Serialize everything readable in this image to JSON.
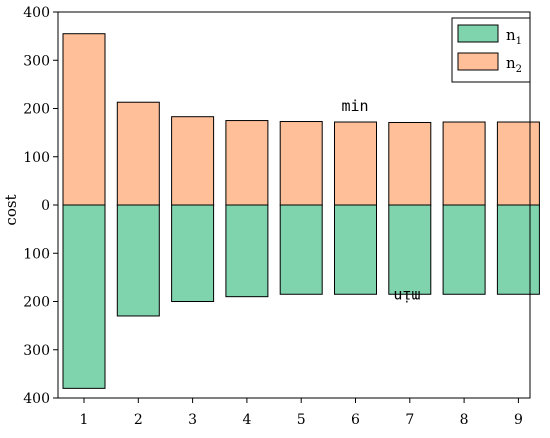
{
  "chart_data": {
    "type": "bar",
    "categories": [
      "1",
      "2",
      "3",
      "4",
      "5",
      "6",
      "7",
      "8",
      "9"
    ],
    "ylabel": "cost",
    "ylim": [
      -400,
      400
    ],
    "yticks": [
      -400,
      -300,
      -200,
      -100,
      0,
      100,
      200,
      300,
      400
    ],
    "ytick_labels": [
      "400",
      "300",
      "200",
      "100",
      "0",
      "100",
      "200",
      "300",
      "400"
    ],
    "series": [
      {
        "name": "n1",
        "color": "#7FD3AD",
        "values": [
          -380,
          -230,
          -200,
          -190,
          -185,
          -185,
          -185,
          -185,
          -185
        ]
      },
      {
        "name": "n2",
        "color": "#FFC099",
        "values": [
          355,
          213,
          183,
          175,
          173,
          172,
          171,
          172,
          172
        ]
      }
    ],
    "legend": {
      "position": "top-right",
      "items": [
        {
          "base": "n",
          "sub": "1",
          "color": "#7FD3AD"
        },
        {
          "base": "n",
          "sub": "2",
          "color": "#FFC099"
        }
      ]
    },
    "annotations": [
      {
        "text": "min",
        "upside_down": false
      },
      {
        "text": "min",
        "upside_down": true
      }
    ],
    "grid": false
  }
}
